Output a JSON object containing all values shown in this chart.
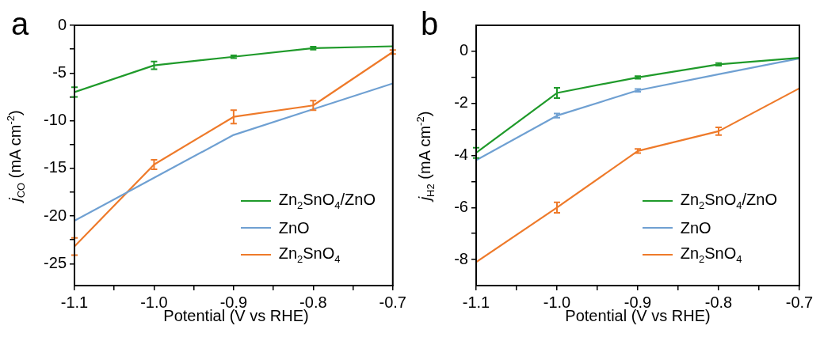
{
  "chart_data": [
    {
      "type": "line",
      "title": "a",
      "xlabel": "Potential (V vs RHE)",
      "ylabel": "j$_{CO}$ (mA cm$^{-2}$)",
      "legend": "bottom right",
      "grid": false,
      "line_style": "solid",
      "x": [
        -1.1,
        -1.0,
        -0.9,
        -0.8,
        -0.7
      ],
      "xlim": [
        -1.1,
        -0.7
      ],
      "xticks": [
        {
          "value": -1.1,
          "label": "-1.1"
        },
        {
          "value": -1.05,
          "label": null
        },
        {
          "value": -1.0,
          "label": "-1.0"
        },
        {
          "value": -0.95,
          "label": null
        },
        {
          "value": -0.9,
          "label": "-0.9"
        },
        {
          "value": -0.85,
          "label": null
        },
        {
          "value": -0.8,
          "label": "-0.8"
        },
        {
          "value": -0.75,
          "label": null
        },
        {
          "value": -0.7,
          "label": "-0.7"
        }
      ],
      "ylim": [
        -27.3,
        0
      ],
      "yticks": [
        0,
        {
          "value": -2.5,
          "label": null
        },
        -5,
        {
          "value": -7.5,
          "label": null
        },
        -10,
        {
          "value": -12.5,
          "label": null
        },
        -15,
        {
          "value": -17.5,
          "label": null
        },
        -20,
        {
          "value": -22.5,
          "label": null
        },
        -25
      ],
      "series": [
        {
          "name": "Zn$_{2}$SnO$_{4}$/ZnO",
          "color": "#1f9a2a",
          "values": [
            -7.0,
            -4.2,
            -3.3,
            -2.4,
            -2.2
          ],
          "errors": [
            0.5,
            0.4,
            0.15,
            0.15,
            null
          ]
        },
        {
          "name": "ZnO",
          "color": "#6fa0d2",
          "values": [
            -20.5,
            -16.0,
            -11.5,
            -8.8,
            -6.1
          ],
          "errors": [
            null,
            null,
            null,
            null,
            null
          ]
        },
        {
          "name": "Zn$_{2}$SnO$_{4}$",
          "color": "#ee7a2a",
          "values": [
            -23.2,
            -14.6,
            -9.6,
            -8.4,
            -2.8
          ],
          "errors": [
            0.9,
            0.5,
            0.7,
            0.5,
            0.2
          ]
        }
      ]
    },
    {
      "type": "line",
      "title": "b",
      "xlabel": "Potential (V vs RHE)",
      "ylabel": "j$_{H2}$ (mA cm$^{-2}$)",
      "legend": "bottom right",
      "grid": false,
      "line_style": "solid",
      "x": [
        -1.1,
        -1.0,
        -0.9,
        -0.8,
        -0.7
      ],
      "xlim": [
        -1.1,
        -0.7
      ],
      "xticks": [
        {
          "value": -1.1,
          "label": "-1.1"
        },
        {
          "value": -1.05,
          "label": null
        },
        {
          "value": -1.0,
          "label": "-1.0"
        },
        {
          "value": -0.95,
          "label": null
        },
        {
          "value": -0.9,
          "label": "-0.9"
        },
        {
          "value": -0.85,
          "label": null
        },
        {
          "value": -0.8,
          "label": "-0.8"
        },
        {
          "value": -0.75,
          "label": null
        },
        {
          "value": -0.7,
          "label": "-0.7"
        }
      ],
      "ylim": [
        -9,
        1
      ],
      "yticks": [
        0,
        {
          "value": -1,
          "label": null
        },
        -2,
        {
          "value": -3,
          "label": null
        },
        -4,
        {
          "value": -5,
          "label": null
        },
        -6,
        {
          "value": -7,
          "label": null
        },
        -8
      ],
      "series": [
        {
          "name": "Zn$_{2}$SnO$_{4}$/ZnO",
          "color": "#1f9a2a",
          "values": [
            -3.9,
            -1.6,
            -1.0,
            -0.5,
            -0.25
          ],
          "errors": [
            0.2,
            0.2,
            0.05,
            0.05,
            null
          ]
        },
        {
          "name": "ZnO",
          "color": "#6fa0d2",
          "values": [
            -4.18,
            -2.47,
            -1.5,
            -0.88,
            -0.27
          ],
          "errors": [
            null,
            0.08,
            0.05,
            null,
            null
          ]
        },
        {
          "name": "Zn$_{2}$SnO$_{4}$",
          "color": "#ee7a2a",
          "values": [
            -8.1,
            -6.0,
            -3.83,
            -3.07,
            -1.42
          ],
          "errors": [
            null,
            0.2,
            0.08,
            0.15,
            null
          ]
        }
      ]
    }
  ]
}
